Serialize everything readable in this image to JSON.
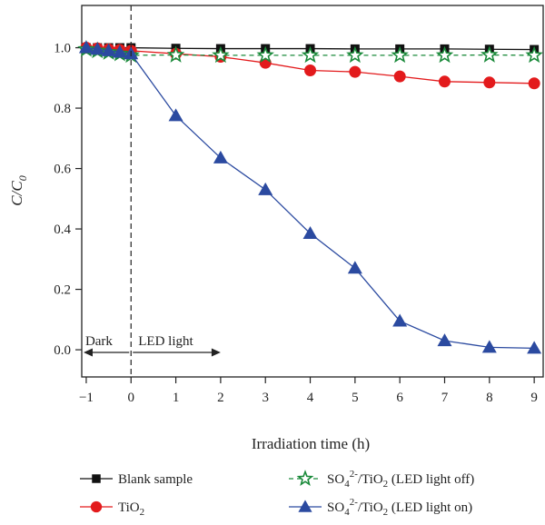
{
  "chart_data": {
    "type": "line",
    "xlabel": "Irradiation time (h)",
    "ylabel_main": "C/C",
    "ylabel_sub": "0",
    "xlim": [
      -1.1,
      9.2
    ],
    "ylim": [
      -0.09,
      1.14
    ],
    "x_ticks": [
      -1,
      0,
      1,
      2,
      3,
      4,
      5,
      6,
      7,
      8,
      9
    ],
    "x_tick_labels": [
      "−1",
      "0",
      "1",
      "2",
      "3",
      "4",
      "5",
      "6",
      "7",
      "8",
      "9"
    ],
    "y_ticks": [
      0.0,
      0.2,
      0.4,
      0.6,
      0.8,
      1.0
    ],
    "y_tick_labels": [
      "0.0",
      "0.2",
      "0.4",
      "0.6",
      "0.8",
      "1.0"
    ],
    "grid": false,
    "legend_position": "bottom",
    "dark_boundary_x": 0,
    "annotations": {
      "dark": "Dark",
      "led": "LED light"
    },
    "series": [
      {
        "name": "Blank sample",
        "color": "#111111",
        "marker": "square",
        "line_style": "solid",
        "x": [
          -1,
          -0.75,
          -0.5,
          -0.25,
          0,
          1,
          2,
          3,
          4,
          5,
          6,
          7,
          8,
          9
        ],
        "y": [
          1.0,
          1.0,
          1.0,
          1.0,
          1.0,
          0.998,
          0.997,
          0.997,
          0.997,
          0.996,
          0.996,
          0.996,
          0.995,
          0.994
        ]
      },
      {
        "name": "TiO2",
        "name_main": "TiO",
        "name_sub": "2",
        "color": "#e31a1c",
        "marker": "circle",
        "line_style": "solid",
        "x": [
          -1,
          -0.75,
          -0.5,
          -0.25,
          0,
          1,
          2,
          3,
          4,
          5,
          6,
          7,
          8,
          9
        ],
        "y": [
          1.0,
          0.998,
          0.995,
          0.993,
          0.99,
          0.98,
          0.97,
          0.95,
          0.925,
          0.92,
          0.905,
          0.888,
          0.885,
          0.882
        ]
      },
      {
        "name": "SO42-/TiO2 (LED light off)",
        "color": "#1a8a3a",
        "marker": "star",
        "line_style": "dashed",
        "x": [
          -1,
          -0.75,
          -0.5,
          -0.25,
          0,
          1,
          2,
          3,
          4,
          5,
          6,
          7,
          8,
          9
        ],
        "y": [
          0.995,
          0.99,
          0.985,
          0.98,
          0.975,
          0.976,
          0.975,
          0.975,
          0.975,
          0.975,
          0.975,
          0.975,
          0.976,
          0.975
        ]
      },
      {
        "name": "SO42-/TiO2 (LED light on)",
        "color": "#2b4aa0",
        "marker": "triangle",
        "line_style": "solid",
        "x": [
          -1,
          -0.75,
          -0.5,
          -0.25,
          0,
          1,
          2,
          3,
          4,
          5,
          6,
          7,
          8,
          9
        ],
        "y": [
          1.0,
          0.995,
          0.99,
          0.985,
          0.98,
          0.775,
          0.635,
          0.53,
          0.385,
          0.27,
          0.095,
          0.03,
          0.008,
          0.005
        ]
      }
    ],
    "legend": [
      {
        "series": 0,
        "text": "Blank sample",
        "sub": "",
        "sup": "",
        "rest": ""
      },
      {
        "series": 1,
        "text": "TiO",
        "sub": "2",
        "sup": "",
        "rest": ""
      },
      {
        "series": 2,
        "text": "SO",
        "sub": "4",
        "sup": "2-",
        "mid": "/TiO",
        "sub2": "2",
        "rest": " (LED light off)"
      },
      {
        "series": 3,
        "text": "SO",
        "sub": "4",
        "sup": "2-",
        "mid": "/TiO",
        "sub2": "2",
        "rest": " (LED light on)"
      }
    ]
  }
}
